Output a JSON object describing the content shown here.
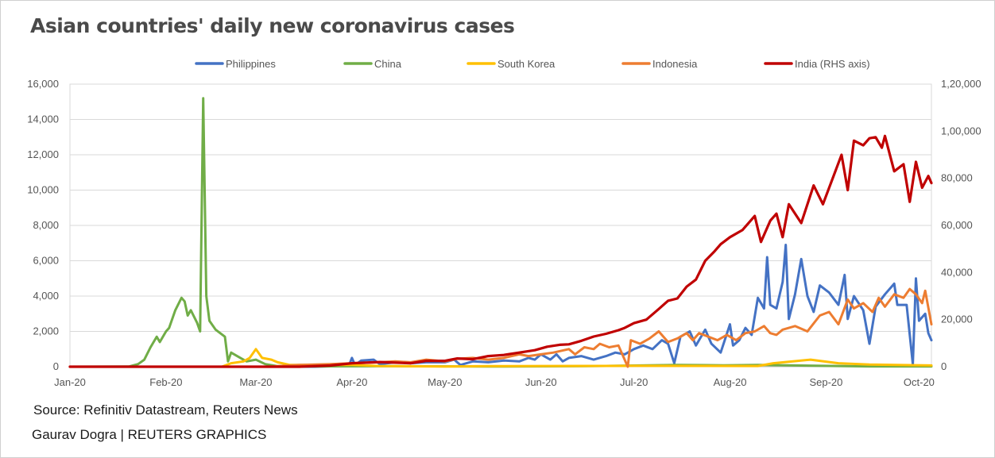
{
  "title": "Asian countries' daily new coronavirus cases",
  "source": "Source: Refinitiv Datastream, Reuters News",
  "credit": "Gaurav Dogra | REUTERS GRAPHICS",
  "chart_data": {
    "type": "line",
    "x_axis": {
      "ticks": [
        "Jan-20",
        "Feb-20",
        "Mar-20",
        "Apr-20",
        "May-20",
        "Jun-20",
        "Jul-20",
        "Aug-20",
        "Sep-20",
        "Oct-20"
      ],
      "range": [
        "2020-01-01",
        "2020-10-05"
      ]
    },
    "y_left": {
      "range": [
        0,
        16000
      ],
      "tick_values": [
        0,
        2000,
        4000,
        6000,
        8000,
        10000,
        12000,
        14000,
        16000
      ],
      "tick_labels": [
        "0",
        "2,000",
        "4,000",
        "6,000",
        "8,000",
        "10,000",
        "12,000",
        "14,000",
        "16,000"
      ]
    },
    "y_right": {
      "range": [
        0,
        120000
      ],
      "tick_values": [
        0,
        20000,
        40000,
        60000,
        80000,
        100000,
        120000
      ],
      "tick_labels": [
        "0",
        "20,000",
        "40,000",
        "60,000",
        "80,000",
        "1,00,000",
        "1,20,000"
      ]
    },
    "grid": "horizontal",
    "legend": "top",
    "series": [
      {
        "name": "Philippines",
        "color": "#4472c4",
        "axis": "left",
        "points": [
          [
            "2020-01-01",
            0
          ],
          [
            "2020-03-20",
            0
          ],
          [
            "2020-03-31",
            50
          ],
          [
            "2020-04-01",
            500
          ],
          [
            "2020-04-02",
            100
          ],
          [
            "2020-04-04",
            350
          ],
          [
            "2020-04-08",
            400
          ],
          [
            "2020-04-10",
            150
          ],
          [
            "2020-04-15",
            250
          ],
          [
            "2020-04-20",
            200
          ],
          [
            "2020-04-25",
            250
          ],
          [
            "2020-05-01",
            250
          ],
          [
            "2020-05-04",
            400
          ],
          [
            "2020-05-06",
            100
          ],
          [
            "2020-05-10",
            300
          ],
          [
            "2020-05-15",
            250
          ],
          [
            "2020-05-20",
            350
          ],
          [
            "2020-05-25",
            300
          ],
          [
            "2020-05-28",
            500
          ],
          [
            "2020-05-30",
            400
          ],
          [
            "2020-06-01",
            700
          ],
          [
            "2020-06-04",
            400
          ],
          [
            "2020-06-06",
            700
          ],
          [
            "2020-06-08",
            300
          ],
          [
            "2020-06-10",
            500
          ],
          [
            "2020-06-14",
            600
          ],
          [
            "2020-06-18",
            400
          ],
          [
            "2020-06-22",
            600
          ],
          [
            "2020-06-25",
            800
          ],
          [
            "2020-06-28",
            700
          ],
          [
            "2020-07-01",
            1000
          ],
          [
            "2020-07-04",
            1200
          ],
          [
            "2020-07-07",
            1000
          ],
          [
            "2020-07-10",
            1500
          ],
          [
            "2020-07-12",
            1300
          ],
          [
            "2020-07-14",
            200
          ],
          [
            "2020-07-16",
            1700
          ],
          [
            "2020-07-19",
            2000
          ],
          [
            "2020-07-21",
            1200
          ],
          [
            "2020-07-24",
            2100
          ],
          [
            "2020-07-26",
            1300
          ],
          [
            "2020-07-29",
            800
          ],
          [
            "2020-08-01",
            2400
          ],
          [
            "2020-08-02",
            1200
          ],
          [
            "2020-08-04",
            1500
          ],
          [
            "2020-08-06",
            2200
          ],
          [
            "2020-08-08",
            1800
          ],
          [
            "2020-08-10",
            3900
          ],
          [
            "2020-08-12",
            3300
          ],
          [
            "2020-08-13",
            6200
          ],
          [
            "2020-08-14",
            3500
          ],
          [
            "2020-08-16",
            3300
          ],
          [
            "2020-08-18",
            4800
          ],
          [
            "2020-08-19",
            6900
          ],
          [
            "2020-08-20",
            2700
          ],
          [
            "2020-08-22",
            4100
          ],
          [
            "2020-08-24",
            6100
          ],
          [
            "2020-08-26",
            4000
          ],
          [
            "2020-08-28",
            3100
          ],
          [
            "2020-08-30",
            4600
          ],
          [
            "2020-09-02",
            4200
          ],
          [
            "2020-09-05",
            3500
          ],
          [
            "2020-09-07",
            5200
          ],
          [
            "2020-09-08",
            2700
          ],
          [
            "2020-09-10",
            4000
          ],
          [
            "2020-09-13",
            3200
          ],
          [
            "2020-09-15",
            1300
          ],
          [
            "2020-09-17",
            3400
          ],
          [
            "2020-09-20",
            4100
          ],
          [
            "2020-09-23",
            4700
          ],
          [
            "2020-09-24",
            3500
          ],
          [
            "2020-09-27",
            3500
          ],
          [
            "2020-09-29",
            150
          ],
          [
            "2020-09-30",
            5000
          ],
          [
            "2020-10-01",
            2600
          ],
          [
            "2020-10-03",
            3000
          ],
          [
            "2020-10-04",
            1900
          ],
          [
            "2020-10-05",
            1500
          ]
        ]
      },
      {
        "name": "China",
        "color": "#70ad47",
        "axis": "left",
        "points": [
          [
            "2020-01-01",
            0
          ],
          [
            "2020-01-20",
            10
          ],
          [
            "2020-01-23",
            150
          ],
          [
            "2020-01-25",
            400
          ],
          [
            "2020-01-27",
            1100
          ],
          [
            "2020-01-29",
            1700
          ],
          [
            "2020-01-30",
            1400
          ],
          [
            "2020-02-01",
            2000
          ],
          [
            "2020-02-02",
            2200
          ],
          [
            "2020-02-04",
            3200
          ],
          [
            "2020-02-06",
            3900
          ],
          [
            "2020-02-07",
            3700
          ],
          [
            "2020-02-08",
            2900
          ],
          [
            "2020-02-09",
            3200
          ],
          [
            "2020-02-11",
            2500
          ],
          [
            "2020-02-12",
            2000
          ],
          [
            "2020-02-13",
            15200
          ],
          [
            "2020-02-14",
            4000
          ],
          [
            "2020-02-15",
            2600
          ],
          [
            "2020-02-17",
            2100
          ],
          [
            "2020-02-20",
            1700
          ],
          [
            "2020-02-21",
            300
          ],
          [
            "2020-02-22",
            800
          ],
          [
            "2020-02-25",
            500
          ],
          [
            "2020-02-27",
            300
          ],
          [
            "2020-03-01",
            400
          ],
          [
            "2020-03-04",
            150
          ],
          [
            "2020-03-08",
            30
          ],
          [
            "2020-03-15",
            20
          ],
          [
            "2020-04-15",
            30
          ],
          [
            "2020-05-15",
            10
          ],
          [
            "2020-06-15",
            30
          ],
          [
            "2020-07-15",
            100
          ],
          [
            "2020-07-30",
            80
          ],
          [
            "2020-08-10",
            100
          ],
          [
            "2020-09-15",
            20
          ],
          [
            "2020-10-05",
            20
          ]
        ]
      },
      {
        "name": "South Korea",
        "color": "#ffc000",
        "axis": "left",
        "points": [
          [
            "2020-01-01",
            0
          ],
          [
            "2020-02-19",
            0
          ],
          [
            "2020-02-22",
            200
          ],
          [
            "2020-02-26",
            300
          ],
          [
            "2020-02-28",
            500
          ],
          [
            "2020-03-01",
            1000
          ],
          [
            "2020-03-03",
            500
          ],
          [
            "2020-03-06",
            400
          ],
          [
            "2020-03-08",
            250
          ],
          [
            "2020-03-12",
            100
          ],
          [
            "2020-03-18",
            100
          ],
          [
            "2020-03-25",
            100
          ],
          [
            "2020-04-01",
            100
          ],
          [
            "2020-04-10",
            40
          ],
          [
            "2020-05-01",
            10
          ],
          [
            "2020-05-15",
            30
          ],
          [
            "2020-06-01",
            40
          ],
          [
            "2020-07-01",
            50
          ],
          [
            "2020-08-10",
            40
          ],
          [
            "2020-08-15",
            200
          ],
          [
            "2020-08-27",
            400
          ],
          [
            "2020-09-05",
            200
          ],
          [
            "2020-09-15",
            120
          ],
          [
            "2020-10-05",
            70
          ]
        ]
      },
      {
        "name": "Indonesia",
        "color": "#ed7d31",
        "axis": "left",
        "points": [
          [
            "2020-01-01",
            0
          ],
          [
            "2020-03-05",
            0
          ],
          [
            "2020-03-15",
            100
          ],
          [
            "2020-03-25",
            150
          ],
          [
            "2020-04-01",
            200
          ],
          [
            "2020-04-10",
            250
          ],
          [
            "2020-04-15",
            300
          ],
          [
            "2020-04-20",
            250
          ],
          [
            "2020-04-25",
            400
          ],
          [
            "2020-05-01",
            300
          ],
          [
            "2020-05-05",
            450
          ],
          [
            "2020-05-10",
            500
          ],
          [
            "2020-05-15",
            400
          ],
          [
            "2020-05-20",
            500
          ],
          [
            "2020-05-25",
            700
          ],
          [
            "2020-05-28",
            600
          ],
          [
            "2020-06-01",
            700
          ],
          [
            "2020-06-05",
            800
          ],
          [
            "2020-06-10",
            1000
          ],
          [
            "2020-06-12",
            700
          ],
          [
            "2020-06-15",
            1100
          ],
          [
            "2020-06-18",
            1000
          ],
          [
            "2020-06-20",
            1300
          ],
          [
            "2020-06-23",
            1100
          ],
          [
            "2020-06-26",
            1200
          ],
          [
            "2020-06-29",
            0
          ],
          [
            "2020-06-30",
            1500
          ],
          [
            "2020-07-03",
            1300
          ],
          [
            "2020-07-06",
            1600
          ],
          [
            "2020-07-09",
            2000
          ],
          [
            "2020-07-12",
            1400
          ],
          [
            "2020-07-15",
            1600
          ],
          [
            "2020-07-18",
            1900
          ],
          [
            "2020-07-20",
            1500
          ],
          [
            "2020-07-22",
            1900
          ],
          [
            "2020-07-25",
            1700
          ],
          [
            "2020-07-28",
            1500
          ],
          [
            "2020-07-31",
            1800
          ],
          [
            "2020-08-03",
            1500
          ],
          [
            "2020-08-06",
            1900
          ],
          [
            "2020-08-09",
            2000
          ],
          [
            "2020-08-12",
            2300
          ],
          [
            "2020-08-14",
            1900
          ],
          [
            "2020-08-16",
            1800
          ],
          [
            "2020-08-18",
            2100
          ],
          [
            "2020-08-22",
            2300
          ],
          [
            "2020-08-26",
            2000
          ],
          [
            "2020-08-30",
            2900
          ],
          [
            "2020-09-02",
            3100
          ],
          [
            "2020-09-05",
            2400
          ],
          [
            "2020-09-08",
            3800
          ],
          [
            "2020-09-10",
            3300
          ],
          [
            "2020-09-13",
            3600
          ],
          [
            "2020-09-16",
            3100
          ],
          [
            "2020-09-18",
            3900
          ],
          [
            "2020-09-20",
            3400
          ],
          [
            "2020-09-23",
            4100
          ],
          [
            "2020-09-26",
            3900
          ],
          [
            "2020-09-28",
            4400
          ],
          [
            "2020-09-30",
            4100
          ],
          [
            "2020-10-02",
            3600
          ],
          [
            "2020-10-03",
            4300
          ],
          [
            "2020-10-05",
            2400
          ]
        ]
      },
      {
        "name": "India (RHS axis)",
        "color": "#c00000",
        "axis": "right",
        "points": [
          [
            "2020-01-01",
            0
          ],
          [
            "2020-03-15",
            0
          ],
          [
            "2020-03-25",
            500
          ],
          [
            "2020-04-01",
            1500
          ],
          [
            "2020-04-10",
            2000
          ],
          [
            "2020-04-20",
            1500
          ],
          [
            "2020-04-25",
            2500
          ],
          [
            "2020-05-01",
            2500
          ],
          [
            "2020-05-05",
            3500
          ],
          [
            "2020-05-10",
            3200
          ],
          [
            "2020-05-15",
            4500
          ],
          [
            "2020-05-20",
            5000
          ],
          [
            "2020-05-25",
            6000
          ],
          [
            "2020-05-30",
            7000
          ],
          [
            "2020-06-03",
            8500
          ],
          [
            "2020-06-07",
            9300
          ],
          [
            "2020-06-10",
            9500
          ],
          [
            "2020-06-14",
            11000
          ],
          [
            "2020-06-18",
            12800
          ],
          [
            "2020-06-22",
            14000
          ],
          [
            "2020-06-26",
            15500
          ],
          [
            "2020-06-28",
            16500
          ],
          [
            "2020-07-01",
            18500
          ],
          [
            "2020-07-05",
            20000
          ],
          [
            "2020-07-09",
            24500
          ],
          [
            "2020-07-12",
            28000
          ],
          [
            "2020-07-15",
            29000
          ],
          [
            "2020-07-18",
            34000
          ],
          [
            "2020-07-21",
            37000
          ],
          [
            "2020-07-24",
            45000
          ],
          [
            "2020-07-27",
            49000
          ],
          [
            "2020-07-29",
            52000
          ],
          [
            "2020-08-01",
            55000
          ],
          [
            "2020-08-05",
            58000
          ],
          [
            "2020-08-09",
            64000
          ],
          [
            "2020-08-11",
            53000
          ],
          [
            "2020-08-14",
            62000
          ],
          [
            "2020-08-16",
            65000
          ],
          [
            "2020-08-18",
            55000
          ],
          [
            "2020-08-20",
            69000
          ],
          [
            "2020-08-24",
            61000
          ],
          [
            "2020-08-28",
            77000
          ],
          [
            "2020-08-31",
            69000
          ],
          [
            "2020-09-04",
            83000
          ],
          [
            "2020-09-06",
            90000
          ],
          [
            "2020-09-08",
            75000
          ],
          [
            "2020-09-10",
            96000
          ],
          [
            "2020-09-13",
            94000
          ],
          [
            "2020-09-15",
            97000
          ],
          [
            "2020-09-17",
            97500
          ],
          [
            "2020-09-19",
            93000
          ],
          [
            "2020-09-20",
            98000
          ],
          [
            "2020-09-23",
            83000
          ],
          [
            "2020-09-26",
            86000
          ],
          [
            "2020-09-28",
            70000
          ],
          [
            "2020-09-30",
            87000
          ],
          [
            "2020-10-02",
            76000
          ],
          [
            "2020-10-04",
            81000
          ],
          [
            "2020-10-05",
            78000
          ]
        ]
      }
    ]
  }
}
